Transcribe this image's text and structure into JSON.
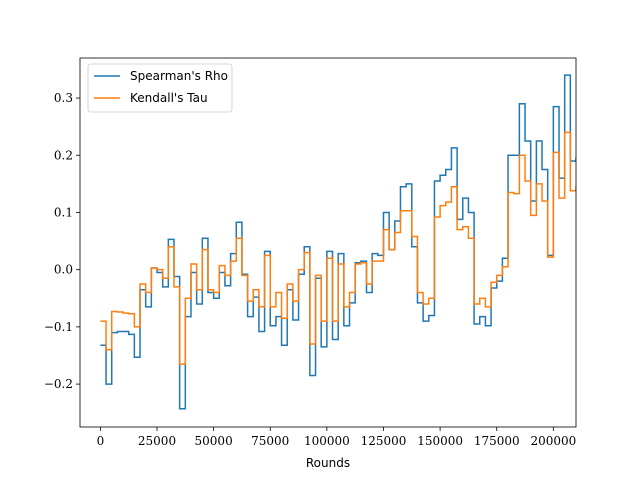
{
  "chart_data": {
    "type": "line",
    "title": "",
    "xlabel": "Rounds",
    "ylabel": "",
    "xlim": [
      -9000,
      210000
    ],
    "ylim": [
      -0.275,
      0.37
    ],
    "xticks": [
      0,
      25000,
      50000,
      75000,
      100000,
      125000,
      150000,
      175000,
      200000
    ],
    "yticks": [
      -0.2,
      -0.1,
      0.0,
      0.1,
      0.2,
      0.3
    ],
    "ytick_labels": [
      "−0.2",
      "−0.1",
      "0.0",
      "0.1",
      "0.2",
      "0.3"
    ],
    "grid": false,
    "legend_position": "top-left",
    "step_width": 2500,
    "series": [
      {
        "name": "Spearman's Rho",
        "color": "#1f77b4",
        "values": [
          -0.132,
          -0.2,
          -0.11,
          -0.108,
          -0.108,
          -0.113,
          -0.153,
          -0.035,
          -0.065,
          0.003,
          -0.005,
          -0.03,
          0.053,
          -0.012,
          -0.243,
          -0.082,
          -0.005,
          -0.06,
          0.055,
          -0.04,
          -0.05,
          -0.005,
          -0.028,
          0.028,
          0.083,
          -0.008,
          -0.082,
          -0.048,
          -0.108,
          0.032,
          -0.098,
          -0.082,
          -0.132,
          -0.035,
          -0.088,
          -0.008,
          0.04,
          -0.185,
          -0.015,
          -0.135,
          0.032,
          -0.122,
          0.028,
          -0.098,
          -0.058,
          0.012,
          0.015,
          -0.04,
          0.028,
          0.025,
          0.1,
          0.035,
          0.085,
          0.145,
          0.15,
          0.04,
          -0.058,
          -0.09,
          -0.08,
          0.155,
          0.165,
          0.175,
          0.213,
          0.088,
          0.125,
          0.1,
          -0.095,
          -0.082,
          -0.098,
          -0.032,
          -0.02,
          0.02,
          0.2,
          0.2,
          0.29,
          0.225,
          0.12,
          0.225,
          0.175,
          0.025,
          0.285,
          0.16,
          0.34,
          0.19,
          0.195,
          0.2,
          0.188
        ]
      },
      {
        "name": "Kendall's Tau",
        "color": "#ff7f0e",
        "values": [
          -0.09,
          -0.14,
          -0.073,
          -0.074,
          -0.076,
          -0.077,
          -0.1,
          -0.025,
          -0.04,
          0.003,
          0.0,
          -0.015,
          0.04,
          -0.03,
          -0.165,
          -0.05,
          0.01,
          -0.035,
          0.035,
          -0.035,
          -0.04,
          0.007,
          -0.01,
          0.015,
          0.055,
          -0.01,
          -0.055,
          -0.035,
          -0.065,
          0.025,
          -0.065,
          -0.04,
          -0.085,
          -0.025,
          -0.055,
          0.0,
          0.03,
          -0.13,
          -0.01,
          -0.09,
          0.02,
          -0.09,
          0.01,
          -0.065,
          -0.04,
          0.01,
          0.012,
          -0.025,
          0.015,
          0.015,
          0.07,
          0.035,
          0.065,
          0.103,
          0.103,
          0.058,
          -0.04,
          -0.06,
          -0.05,
          0.092,
          0.112,
          0.118,
          0.145,
          0.07,
          0.075,
          0.055,
          -0.06,
          -0.05,
          -0.065,
          -0.022,
          -0.01,
          0.005,
          0.135,
          0.133,
          0.2,
          0.155,
          0.095,
          0.15,
          0.12,
          0.022,
          0.205,
          0.125,
          0.24,
          0.138,
          0.145,
          0.155,
          0.14
        ]
      }
    ]
  }
}
